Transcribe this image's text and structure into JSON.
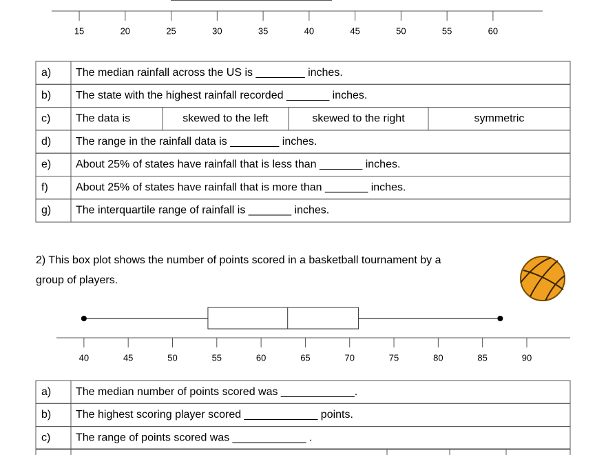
{
  "top_axis": {
    "xlim": [
      12,
      65.4
    ],
    "xticks": [
      15,
      20,
      25,
      30,
      35,
      40,
      45,
      50,
      55,
      60
    ]
  },
  "table1": {
    "rows": [
      [
        "a)",
        "The median rainfall across the US is ________ inches."
      ],
      [
        "b)",
        "The state with the highest rainfall recorded _______ inches."
      ],
      [
        "c)",
        "The data is",
        "skewed to the left",
        "skewed to the right",
        "symmetric"
      ],
      [
        "d)",
        "The range in the rainfall data is ________ inches."
      ],
      [
        "e)",
        "About 25% of states have rainfall that is less than _______ inches."
      ],
      [
        "f)",
        "About 25% of states have rainfall that is more than _______ inches."
      ],
      [
        "g)",
        "The interquartile range of rainfall is _______ inches."
      ]
    ]
  },
  "question2": {
    "line1": "2) This box plot shows the number of points scored in a basketball tournament by a",
    "line2": "group of players."
  },
  "box_plot": {
    "min": 40,
    "q1": 54,
    "median": 63,
    "q3": 71,
    "max": 87,
    "xlim": [
      36.9,
      94.9
    ],
    "xticks": [
      40,
      45,
      50,
      55,
      60,
      65,
      70,
      75,
      80,
      85,
      90
    ]
  },
  "table2": {
    "rows": [
      [
        "a)",
        "The median number of points scored was ____________."
      ],
      [
        "b)",
        "The highest scoring player scored ____________ points."
      ],
      [
        "c)",
        "The range of points scored was ____________ ."
      ]
    ]
  }
}
